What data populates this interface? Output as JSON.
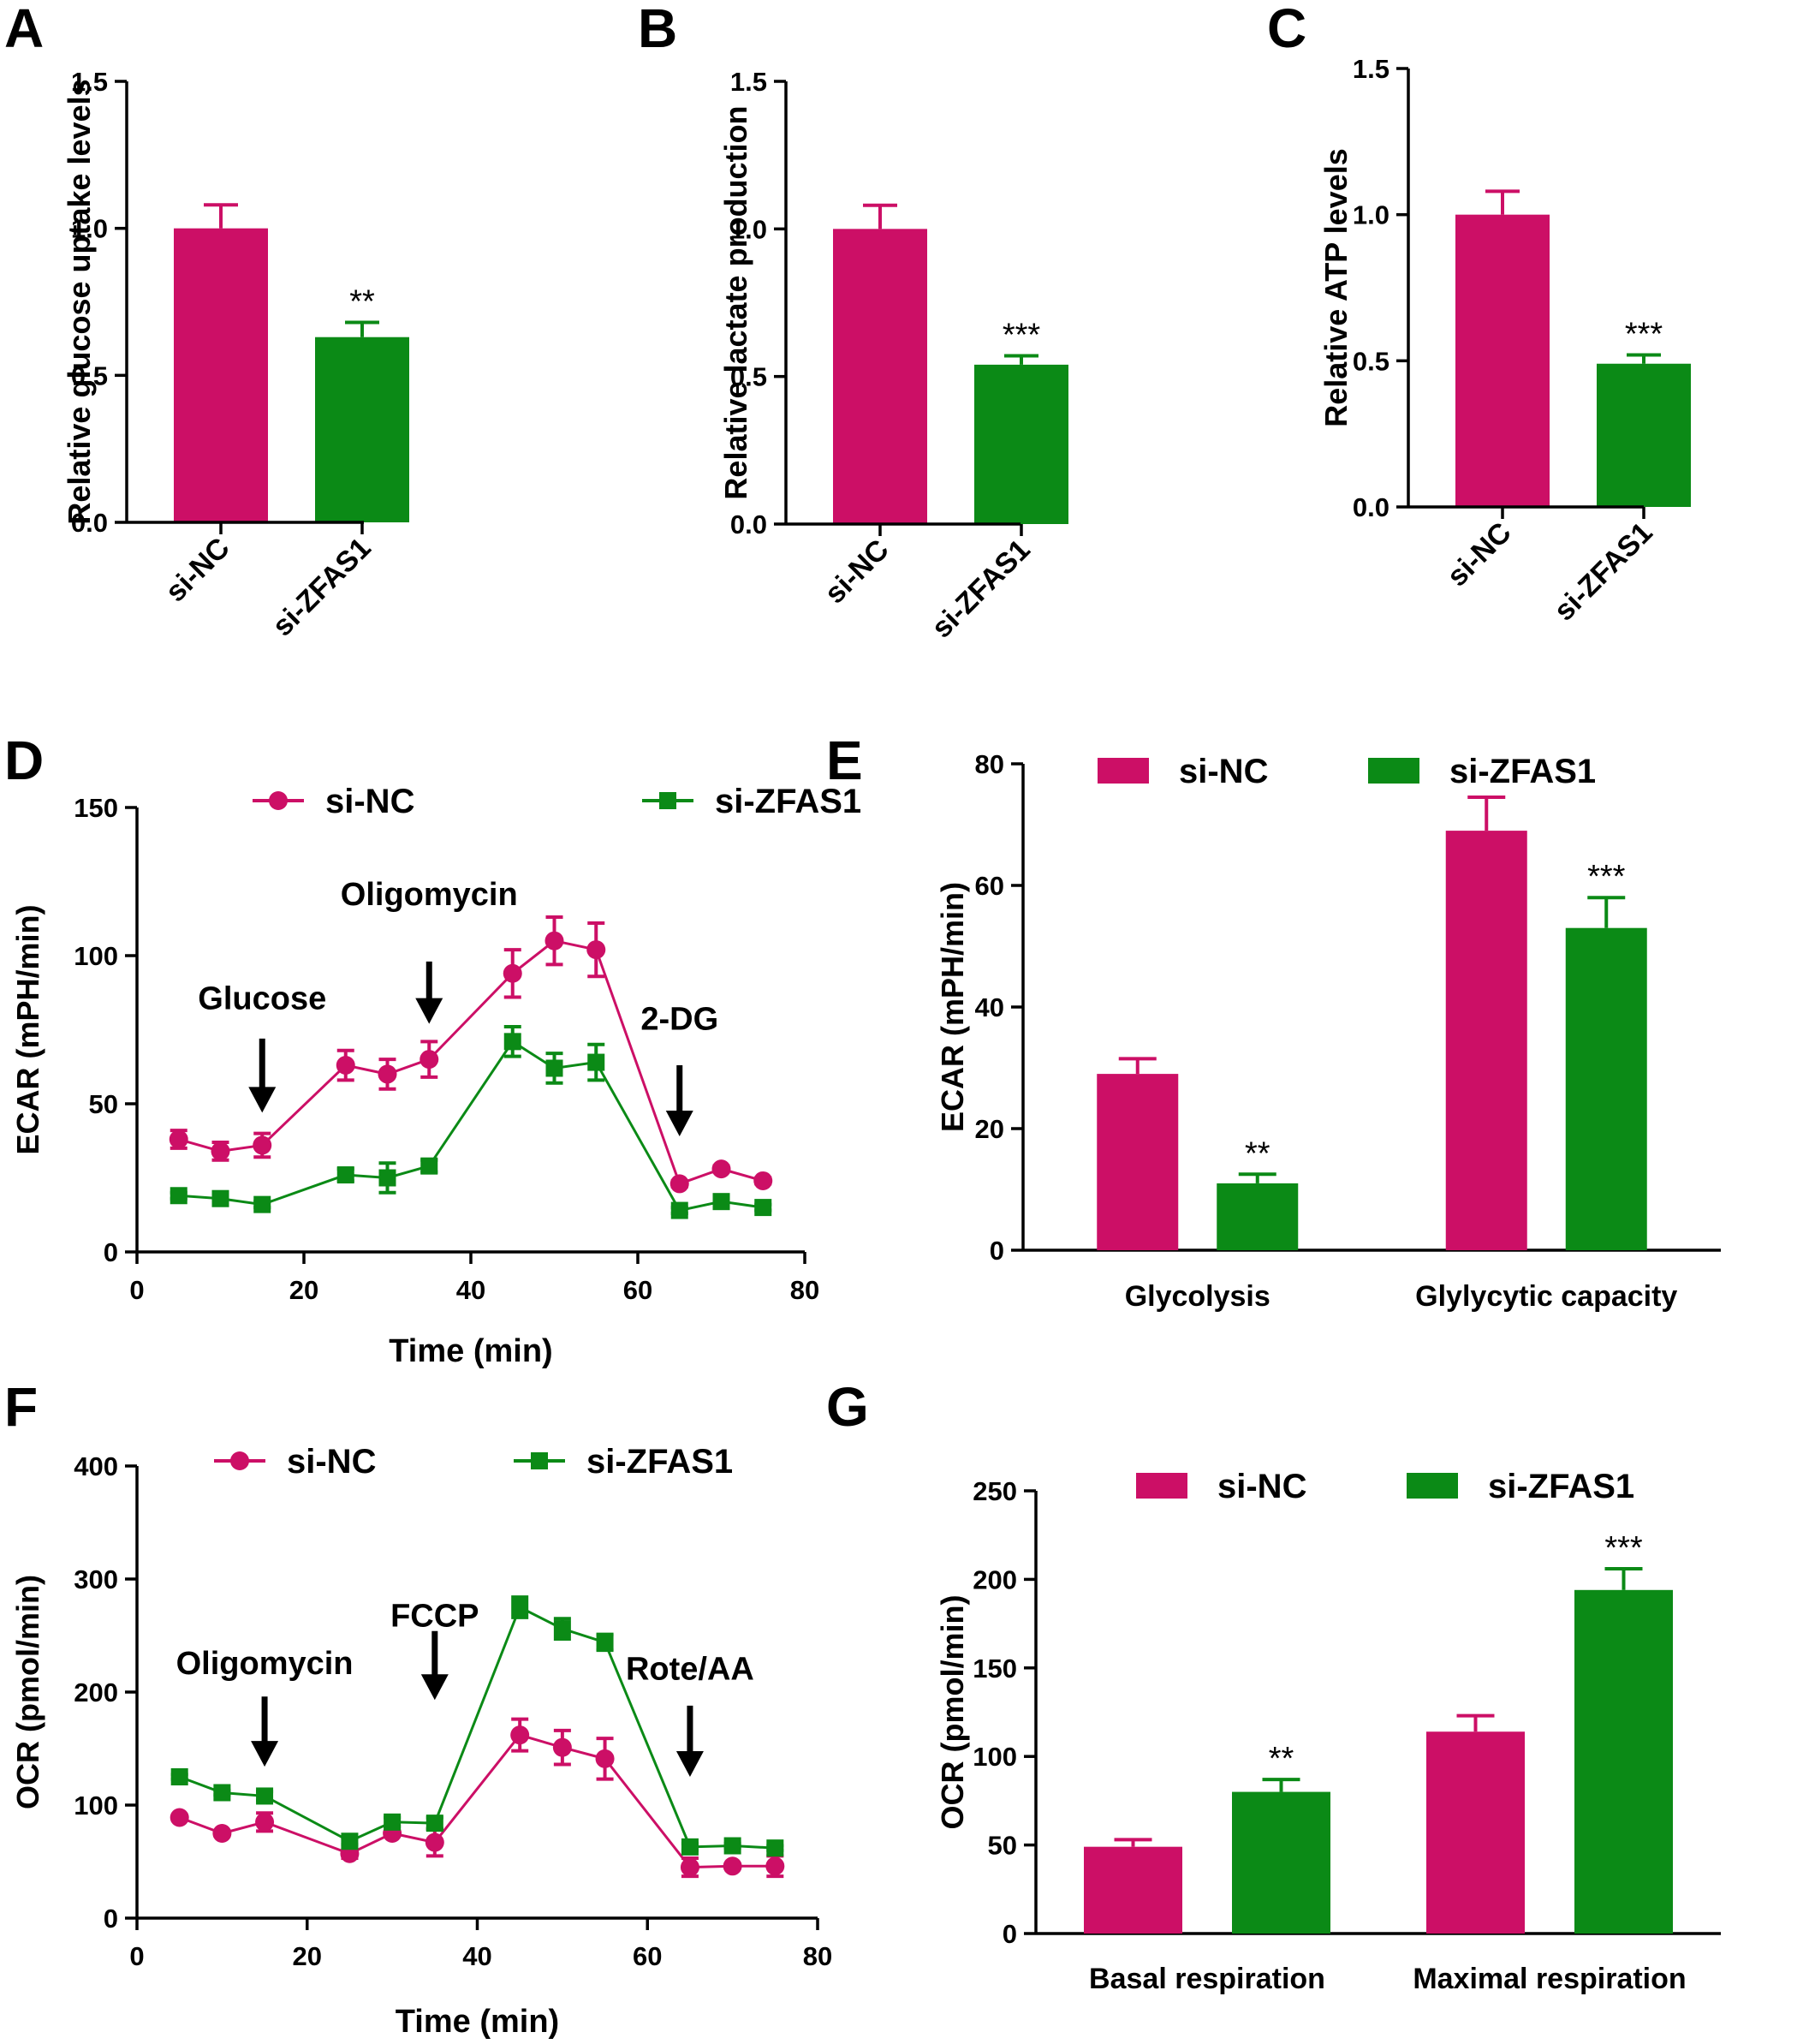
{
  "colors": {
    "si_nc": "#cc0f66",
    "si_zfas1": "#0b8a16",
    "axis": "#000000"
  },
  "chart_data": [
    {
      "id": "A",
      "panel_label": "A",
      "type": "bar",
      "ylabel": "Relative glucose uptake levels",
      "ylim": [
        0,
        1.5
      ],
      "yticks": [
        "0.0",
        "0.5",
        "1.0",
        "1.5"
      ],
      "categories": [
        "si-NC",
        "si-ZFAS1"
      ],
      "values": [
        1.0,
        0.63
      ],
      "errors": [
        0.08,
        0.05
      ],
      "significance": [
        "",
        "**"
      ]
    },
    {
      "id": "B",
      "panel_label": "B",
      "type": "bar",
      "ylabel": "Relative lactate production",
      "ylim": [
        0,
        1.5
      ],
      "yticks": [
        "0.0",
        "0.5",
        "1.0",
        "1.5"
      ],
      "categories": [
        "si-NC",
        "si-ZFAS1"
      ],
      "values": [
        1.0,
        0.54
      ],
      "errors": [
        0.08,
        0.03
      ],
      "significance": [
        "",
        "***"
      ]
    },
    {
      "id": "C",
      "panel_label": "C",
      "type": "bar",
      "ylabel": "Relative ATP levels",
      "ylim": [
        0,
        1.5
      ],
      "yticks": [
        "0.0",
        "0.5",
        "1.0",
        "1.5"
      ],
      "categories": [
        "si-NC",
        "si-ZFAS1"
      ],
      "values": [
        1.0,
        0.49
      ],
      "errors": [
        0.08,
        0.03
      ],
      "significance": [
        "",
        "***"
      ]
    },
    {
      "id": "D",
      "panel_label": "D",
      "type": "line",
      "ylabel": "ECAR (mPH/min)",
      "xlabel": "Time (min)",
      "xlim": [
        0,
        80
      ],
      "ylim": [
        0,
        150
      ],
      "xticks": [
        "0",
        "20",
        "40",
        "60",
        "80"
      ],
      "yticks": [
        "0",
        "50",
        "100",
        "150"
      ],
      "x": [
        5,
        10,
        15,
        25,
        30,
        35,
        45,
        50,
        55,
        65,
        70,
        75
      ],
      "series": [
        {
          "name": "si-NC",
          "marker": "circle",
          "values": [
            38,
            34,
            36,
            63,
            60,
            65,
            94,
            105,
            102,
            23,
            28,
            24
          ],
          "errors": [
            3,
            3,
            4,
            5,
            5,
            6,
            8,
            8,
            9,
            1,
            1,
            1
          ]
        },
        {
          "name": "si-ZFAS1",
          "marker": "square",
          "values": [
            19,
            18,
            16,
            26,
            25,
            29,
            71,
            62,
            64,
            14,
            17,
            15
          ],
          "errors": [
            1,
            1,
            1,
            2,
            5,
            2,
            5,
            5,
            6,
            1,
            1,
            1
          ]
        }
      ],
      "annotations": [
        {
          "text": "Glucose",
          "x": 15,
          "arrow_top": 72,
          "arrow_tip": 47,
          "label_y": 82
        },
        {
          "text": "Oligomycin",
          "x": 35,
          "arrow_top": 98,
          "arrow_tip": 77,
          "label_y": 117
        },
        {
          "text": "2-DG",
          "x": 65,
          "arrow_top": 63,
          "arrow_tip": 39,
          "label_y": 75
        }
      ],
      "legend": "top"
    },
    {
      "id": "E",
      "panel_label": "E",
      "type": "bar",
      "ylabel": "ECAR (mPH/min)",
      "ylim": [
        0,
        80
      ],
      "yticks": [
        "0",
        "20",
        "40",
        "60",
        "80"
      ],
      "categories": [
        "Glycolysis",
        "Glylycytic capacity"
      ],
      "series": [
        {
          "name": "si-NC",
          "values": [
            29,
            69
          ],
          "errors": [
            2.5,
            5.5
          ]
        },
        {
          "name": "si-ZFAS1",
          "values": [
            11,
            53
          ],
          "errors": [
            1.5,
            5
          ]
        }
      ],
      "significance": [
        [
          "",
          "**"
        ],
        [
          "",
          "***"
        ]
      ],
      "legend": "top"
    },
    {
      "id": "F",
      "panel_label": "F",
      "type": "line",
      "ylabel": "OCR (pmol/min)",
      "xlabel": "Time (min)",
      "xlim": [
        0,
        80
      ],
      "ylim": [
        0,
        400
      ],
      "xticks": [
        "0",
        "20",
        "40",
        "60",
        "80"
      ],
      "yticks": [
        "0",
        "100",
        "200",
        "300",
        "400"
      ],
      "x": [
        5,
        10,
        15,
        25,
        30,
        35,
        45,
        50,
        55,
        65,
        70,
        75
      ],
      "series": [
        {
          "name": "si-NC",
          "marker": "circle",
          "values": [
            89,
            75,
            85,
            57,
            75,
            67,
            162,
            151,
            141,
            45,
            46,
            46
          ],
          "errors": [
            2,
            2,
            8,
            4,
            2,
            12,
            14,
            15,
            18,
            8,
            2,
            9
          ]
        },
        {
          "name": "si-ZFAS1",
          "marker": "square",
          "values": [
            125,
            111,
            108,
            68,
            85,
            84,
            275,
            256,
            244,
            63,
            64,
            62
          ],
          "errors": [
            2,
            2,
            4,
            3,
            4,
            5,
            9,
            9,
            7,
            3,
            2,
            2
          ]
        }
      ],
      "annotations": [
        {
          "text": "Oligomycin",
          "x": 15,
          "arrow_top": 196,
          "arrow_tip": 134,
          "label_y": 216
        },
        {
          "text": "FCCP",
          "x": 35,
          "arrow_top": 254,
          "arrow_tip": 193,
          "label_y": 258
        },
        {
          "text": "Rote/AA",
          "x": 65,
          "arrow_top": 188,
          "arrow_tip": 125,
          "label_y": 211
        }
      ],
      "legend": "top"
    },
    {
      "id": "G",
      "panel_label": "G",
      "type": "bar",
      "ylabel": "OCR (pmol/min)",
      "ylim": [
        0,
        250
      ],
      "yticks": [
        "0",
        "50",
        "100",
        "150",
        "200",
        "250"
      ],
      "categories": [
        "Basal respiration",
        "Maximal respiration"
      ],
      "series": [
        {
          "name": "si-NC",
          "values": [
            49,
            114
          ],
          "errors": [
            4,
            9
          ]
        },
        {
          "name": "si-ZFAS1",
          "values": [
            80,
            194
          ],
          "errors": [
            7,
            12
          ]
        }
      ],
      "significance": [
        [
          "",
          "**"
        ],
        [
          "",
          "***"
        ]
      ],
      "legend": "top"
    }
  ]
}
